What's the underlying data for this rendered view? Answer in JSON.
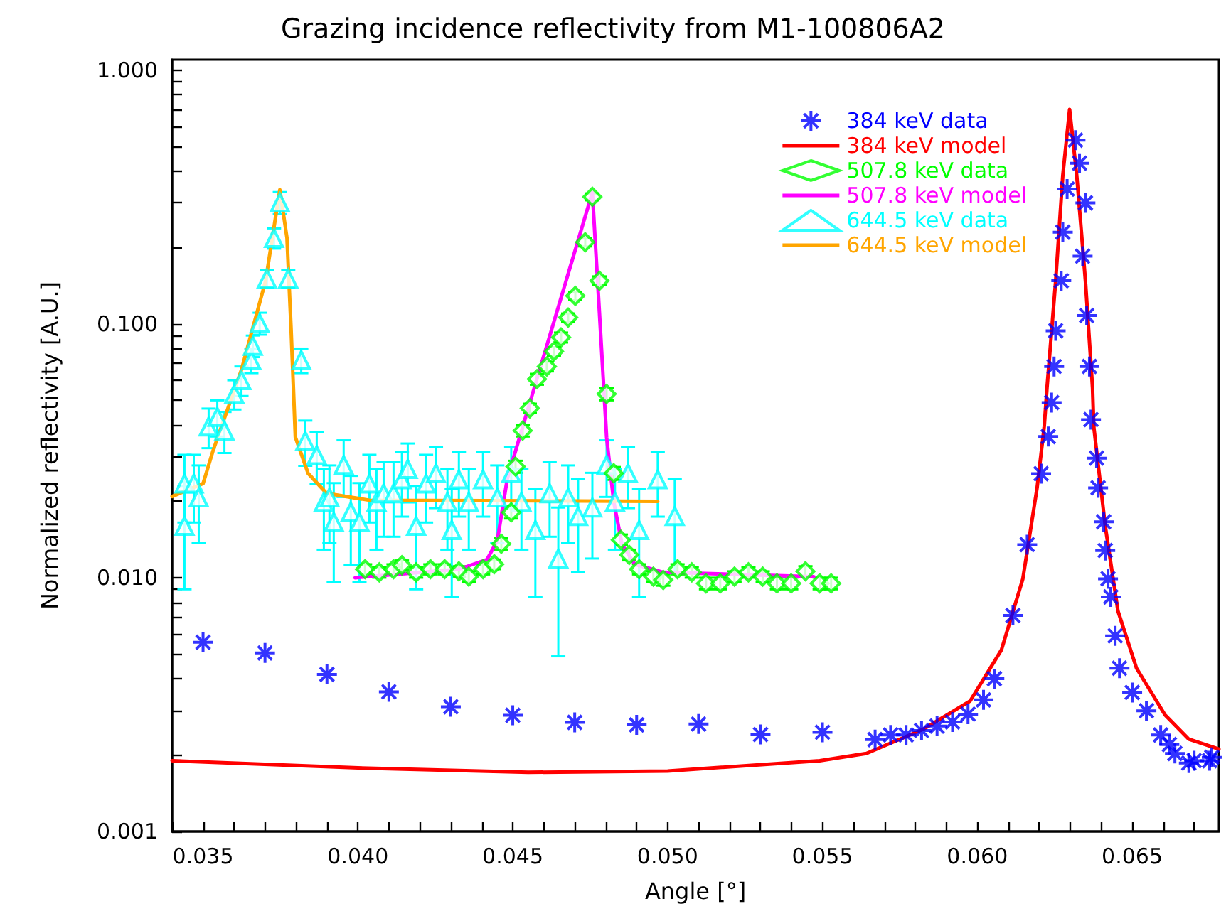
{
  "chart_data": {
    "type": "scatter",
    "title": "Grazing incidence reflectivity from M1-100806A2",
    "xlabel": "Angle [°]",
    "ylabel": "Normalized reflectivity [A.U.]",
    "log": "y",
    "grid": false,
    "legend": "top right",
    "xlim": [
      0.034,
      0.0678
    ],
    "xticks": [
      {
        "value": 0.034,
        "label": null
      },
      0.035,
      {
        "value": 0.036,
        "label": null
      },
      {
        "value": 0.037,
        "label": null
      },
      {
        "value": 0.038,
        "label": null
      },
      {
        "value": 0.039,
        "label": null
      },
      {
        "value": 0.04,
        "label": "0.040"
      },
      {
        "value": 0.041,
        "label": null
      },
      {
        "value": 0.042,
        "label": null
      },
      {
        "value": 0.043,
        "label": null
      },
      {
        "value": 0.044,
        "label": null
      },
      0.045,
      {
        "value": 0.046,
        "label": null
      },
      {
        "value": 0.047,
        "label": null
      },
      {
        "value": 0.048,
        "label": null
      },
      {
        "value": 0.049,
        "label": null
      },
      {
        "value": 0.05,
        "label": "0.050"
      },
      {
        "value": 0.051,
        "label": null
      },
      {
        "value": 0.052,
        "label": null
      },
      {
        "value": 0.053,
        "label": null
      },
      {
        "value": 0.054,
        "label": null
      },
      0.055,
      {
        "value": 0.056,
        "label": null
      },
      {
        "value": 0.057,
        "label": null
      },
      {
        "value": 0.058,
        "label": null
      },
      {
        "value": 0.059,
        "label": null
      },
      {
        "value": 0.06,
        "label": "0.060"
      },
      {
        "value": 0.061,
        "label": null
      },
      {
        "value": 0.062,
        "label": null
      },
      {
        "value": 0.063,
        "label": null
      },
      {
        "value": 0.064,
        "label": null
      },
      0.065,
      {
        "value": 0.066,
        "label": null
      },
      {
        "value": 0.067,
        "label": null
      }
    ],
    "ylim": [
      0.001,
      1.1
    ],
    "yticks": [
      {
        "value": 0.001,
        "label": "0.001"
      },
      {
        "value": 0.002,
        "label": null
      },
      {
        "value": 0.003,
        "label": null
      },
      {
        "value": 0.004,
        "label": null
      },
      {
        "value": 0.005,
        "label": null
      },
      {
        "value": 0.006,
        "label": null
      },
      {
        "value": 0.007,
        "label": null
      },
      {
        "value": 0.008,
        "label": null
      },
      {
        "value": 0.009,
        "label": null
      },
      {
        "value": 0.01,
        "label": "0.010"
      },
      {
        "value": 0.02,
        "label": null
      },
      {
        "value": 0.03,
        "label": null
      },
      {
        "value": 0.04,
        "label": null
      },
      {
        "value": 0.05,
        "label": null
      },
      {
        "value": 0.06,
        "label": null
      },
      {
        "value": 0.07,
        "label": null
      },
      {
        "value": 0.08,
        "label": null
      },
      {
        "value": 0.09,
        "label": null
      },
      {
        "value": 0.1,
        "label": "0.100"
      },
      {
        "value": 0.2,
        "label": null
      },
      {
        "value": 0.3,
        "label": null
      },
      {
        "value": 0.4,
        "label": null
      },
      {
        "value": 0.5,
        "label": null
      },
      {
        "value": 0.6,
        "label": null
      },
      {
        "value": 0.7,
        "label": null
      },
      {
        "value": 0.8,
        "label": null
      },
      {
        "value": 0.9,
        "label": null
      },
      {
        "value": 1,
        "label": "1.000"
      }
    ],
    "series": [
      {
        "name": "384 keV data",
        "marker": "cross",
        "color": "#0000ff",
        "x": [
          0.035,
          0.037,
          0.039,
          0.041,
          0.043,
          0.045,
          0.047,
          0.049,
          0.051,
          0.053,
          0.055,
          0.0567,
          0.0572,
          0.0577,
          0.0582,
          0.0587,
          0.0592,
          0.0597,
          0.0602,
          0.06055,
          0.06115,
          0.06161,
          0.06206,
          0.06229,
          0.0624,
          0.06248,
          0.06253,
          0.06271,
          0.06276,
          0.0629,
          0.06317,
          0.0633,
          0.06349,
          0.0634,
          0.06353,
          0.06362,
          0.06367,
          0.06385,
          0.0639,
          0.06408,
          0.06413,
          0.06422,
          0.06431,
          0.06445,
          0.06459,
          0.065,
          0.06546,
          0.06592,
          0.0662,
          0.06638,
          0.06683,
          0.067,
          0.0675,
          0.06757
        ],
        "values": [
          0.00557,
          0.00505,
          0.00416,
          0.00355,
          0.0031,
          0.00287,
          0.00269,
          0.00263,
          0.00265,
          0.00241,
          0.00246,
          0.0023,
          0.0024,
          0.0024,
          0.0025,
          0.0026,
          0.0027,
          0.0029,
          0.0033,
          0.004,
          0.0071,
          0.0135,
          0.0257,
          0.036,
          0.049,
          0.068,
          0.094,
          0.148,
          0.23,
          0.34,
          0.53,
          0.43,
          0.3,
          0.185,
          0.108,
          0.068,
          0.042,
          0.0296,
          0.0226,
          0.0166,
          0.0128,
          0.0099,
          0.0084,
          0.0059,
          0.0044,
          0.00353,
          0.00299,
          0.0024,
          0.0022,
          0.00203,
          0.00186,
          0.0019,
          0.0019,
          0.00196
        ]
      },
      {
        "name": "384 keV model",
        "type": "line",
        "marker": "none",
        "color": "#ff0000",
        "x": [
          0.034,
          0.04,
          0.0455,
          0.05,
          0.05491,
          0.05642,
          0.05826,
          0.05977,
          0.06078,
          0.06147,
          0.06193,
          0.06216,
          0.06225,
          0.06253,
          0.06276,
          0.06298,
          0.06321,
          0.06349,
          0.06372,
          0.06376,
          0.06413,
          0.06454,
          0.06514,
          0.06606,
          0.06683,
          0.0678
        ],
        "values": [
          0.0019,
          0.00178,
          0.00171,
          0.00173,
          0.0019,
          0.00203,
          0.00253,
          0.00327,
          0.0052,
          0.0099,
          0.0226,
          0.0394,
          0.056,
          0.148,
          0.385,
          0.7,
          0.385,
          0.148,
          0.056,
          0.0394,
          0.016,
          0.0074,
          0.0044,
          0.00288,
          0.00231,
          0.00211
        ]
      },
      {
        "name": "507.8 keV data",
        "marker": "diamond",
        "color": "#00ff00",
        "x": [
          0.04023,
          0.04069,
          0.04115,
          0.04142,
          0.04188,
          0.04234,
          0.0428,
          0.04326,
          0.04358,
          0.04404,
          0.0444,
          0.04463,
          0.04495,
          0.04509,
          0.04532,
          0.04555,
          0.04578,
          0.0461,
          0.04633,
          0.04656,
          0.04679,
          0.04702,
          0.04734,
          0.04757,
          0.0478,
          0.04803,
          0.04826,
          0.04849,
          0.04876,
          0.04908,
          0.04954,
          0.04986,
          0.05032,
          0.05078,
          0.05124,
          0.0517,
          0.05216,
          0.05261,
          0.05307,
          0.05353,
          0.05399,
          0.05445,
          0.05491,
          0.05528
        ],
        "values": [
          0.0108,
          0.0105,
          0.0108,
          0.0112,
          0.0105,
          0.0108,
          0.0108,
          0.0106,
          0.0101,
          0.0108,
          0.0113,
          0.0136,
          0.0181,
          0.0274,
          0.038,
          0.0465,
          0.0606,
          0.068,
          0.078,
          0.0885,
          0.106,
          0.129,
          0.21,
          0.317,
          0.148,
          0.053,
          0.0258,
          0.0141,
          0.0123,
          0.0108,
          0.0101,
          0.0098,
          0.0108,
          0.0105,
          0.0095,
          0.0095,
          0.0101,
          0.0105,
          0.0101,
          0.0095,
          0.0095,
          0.0106,
          0.0095,
          0.0095
        ],
        "errors": [
          0.0005,
          0.0005,
          0.0005,
          0.0005,
          0.0005,
          0.0005,
          0.0005,
          0.0005,
          0.0005,
          0.0005,
          0.0005,
          0.0007,
          0.001,
          0.0015,
          0.002,
          0.002,
          0.003,
          0.003,
          0.003,
          0.004,
          0.004,
          0.005,
          0.008,
          0.01,
          0.006,
          0.003,
          0.0015,
          0.0007,
          0.0006,
          0.0005,
          0.0005,
          0.0005,
          0.0005,
          0.0005,
          0.0005,
          0.0005,
          0.0005,
          0.0005,
          0.0005,
          0.0005,
          0.0005,
          0.0005,
          0.0005,
          0.0005
        ]
      },
      {
        "name": "507.8 keV model",
        "type": "line",
        "marker": "none",
        "color": "#ff00ff",
        "x": [
          0.03991,
          0.04326,
          0.04417,
          0.0445,
          0.04482,
          0.04509,
          0.04757,
          0.0478,
          0.04803,
          0.04826,
          0.04853,
          0.04894,
          0.04986,
          0.05472
        ],
        "values": [
          0.01,
          0.0108,
          0.0118,
          0.014,
          0.0244,
          0.0316,
          0.33,
          0.11,
          0.0358,
          0.0199,
          0.0135,
          0.0113,
          0.0105,
          0.0101
        ]
      },
      {
        "name": "644.5 keV data",
        "marker": "triangle",
        "color": "#00ffff",
        "x": [
          0.0344,
          0.0344,
          0.0347,
          0.03486,
          0.03518,
          0.03546,
          0.03569,
          0.03601,
          0.03624,
          0.03656,
          0.03661,
          0.03683,
          0.03706,
          0.03729,
          0.03748,
          0.03775,
          0.03817,
          0.0383,
          0.03867,
          0.0389,
          0.03908,
          0.03922,
          0.03954,
          0.03977,
          0.04005,
          0.04037,
          0.0406,
          0.04083,
          0.04115,
          0.04142,
          0.04161,
          0.04188,
          0.0422,
          0.04252,
          0.04289,
          0.04303,
          0.04326,
          0.04358,
          0.04404,
          0.0445,
          0.04495,
          0.04528,
          0.04573,
          0.04619,
          0.04647,
          0.04679,
          0.04711,
          0.04757,
          0.04803,
          0.0483,
          0.04872,
          0.04908,
          0.04968,
          0.05023
        ],
        "values": [
          0.016,
          0.0235,
          0.0235,
          0.0207,
          0.0394,
          0.043,
          0.038,
          0.053,
          0.06,
          0.072,
          0.082,
          0.1007,
          0.151,
          0.218,
          0.301,
          0.151,
          0.072,
          0.0346,
          0.0304,
          0.0199,
          0.0207,
          0.0166,
          0.0278,
          0.0182,
          0.0166,
          0.0235,
          0.0199,
          0.0215,
          0.0215,
          0.0244,
          0.0268,
          0.016,
          0.0235,
          0.0258,
          0.0199,
          0.0154,
          0.0244,
          0.0199,
          0.0244,
          0.0207,
          0.0258,
          0.0199,
          0.0154,
          0.0215,
          0.0119,
          0.0207,
          0.0175,
          0.0189,
          0.0278,
          0.0199,
          0.0258,
          0.0154,
          0.0244,
          0.0175
        ],
        "errors": [
          0.007,
          0.007,
          0.007,
          0.007,
          0.007,
          0.007,
          0.007,
          0.007,
          0.008,
          0.008,
          0.008,
          0.01,
          0.012,
          0.02,
          0.03,
          0.012,
          0.008,
          0.007,
          0.007,
          0.007,
          0.007,
          0.007,
          0.007,
          0.007,
          0.007,
          0.007,
          0.007,
          0.007,
          0.007,
          0.007,
          0.007,
          0.007,
          0.007,
          0.007,
          0.007,
          0.007,
          0.007,
          0.007,
          0.007,
          0.007,
          0.007,
          0.007,
          0.007,
          0.007,
          0.007,
          0.007,
          0.007,
          0.007,
          0.007,
          0.007,
          0.007,
          0.007,
          0.007,
          0.007
        ]
      },
      {
        "name": "644.5 keV model",
        "type": "line",
        "marker": "none",
        "color": "#ffa500",
        "x": [
          0.034,
          0.035,
          0.03532,
          0.03624,
          0.03702,
          0.03748,
          0.03771,
          0.03784,
          0.03798,
          0.03839,
          0.03899,
          0.04037,
          0.04968
        ],
        "values": [
          0.0209,
          0.0235,
          0.0316,
          0.066,
          0.148,
          0.338,
          0.218,
          0.097,
          0.0358,
          0.0258,
          0.0215,
          0.0202,
          0.02
        ]
      }
    ]
  }
}
